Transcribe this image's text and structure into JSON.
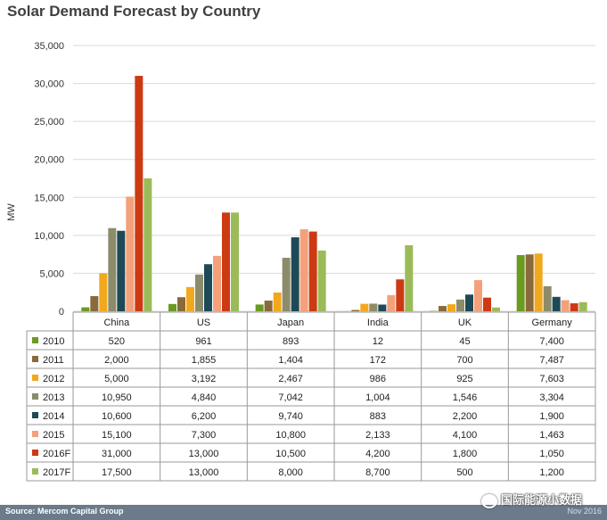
{
  "chart_data": {
    "type": "bar",
    "title": "Solar Demand Forecast by Country",
    "ylabel": "MW",
    "ylim": [
      0,
      35000
    ],
    "yticks": [
      "0",
      "5,000",
      "10,000",
      "15,000",
      "20,000",
      "25,000",
      "30,000",
      "35,000"
    ],
    "grid": true,
    "categories": [
      "China",
      "US",
      "Japan",
      "India",
      "UK",
      "Germany"
    ],
    "series": [
      {
        "name": "2010",
        "color": "#6a9a1f",
        "values": [
          520,
          961,
          893,
          12,
          45,
          7400
        ],
        "labels": [
          "520",
          "961",
          "893",
          "12",
          "45",
          "7,400"
        ]
      },
      {
        "name": "2011",
        "color": "#8a6a3a",
        "values": [
          2000,
          1855,
          1404,
          172,
          700,
          7487
        ],
        "labels": [
          "2,000",
          "1,855",
          "1,404",
          "172",
          "700",
          "7,487"
        ]
      },
      {
        "name": "2012",
        "color": "#f2a81d",
        "values": [
          5000,
          3192,
          2467,
          986,
          925,
          7603
        ],
        "labels": [
          "5,000",
          "3,192",
          "2,467",
          "986",
          "925",
          "7,603"
        ]
      },
      {
        "name": "2013",
        "color": "#8c8c6a",
        "values": [
          10950,
          4840,
          7042,
          1004,
          1546,
          3304
        ],
        "labels": [
          "10,950",
          "4,840",
          "7,042",
          "1,004",
          "1,546",
          "3,304"
        ]
      },
      {
        "name": "2014",
        "color": "#1e4a57",
        "values": [
          10600,
          6200,
          9740,
          883,
          2200,
          1900
        ],
        "labels": [
          "10,600",
          "6,200",
          "9,740",
          "883",
          "2,200",
          "1,900"
        ]
      },
      {
        "name": "2015",
        "color": "#f4a07a",
        "values": [
          15100,
          7300,
          10800,
          2133,
          4100,
          1463
        ],
        "labels": [
          "15,100",
          "7,300",
          "10,800",
          "2,133",
          "4,100",
          "1,463"
        ]
      },
      {
        "name": "2016F",
        "color": "#cc3a14",
        "values": [
          31000,
          13000,
          10500,
          4200,
          1800,
          1050
        ],
        "labels": [
          "31,000",
          "13,000",
          "10,500",
          "4,200",
          "1,800",
          "1,050"
        ]
      },
      {
        "name": "2017F",
        "color": "#9bbb59",
        "values": [
          17500,
          13000,
          8000,
          8700,
          500,
          1200
        ],
        "labels": [
          "17,500",
          "13,000",
          "8,000",
          "8,700",
          "500",
          "1,200"
        ]
      }
    ]
  },
  "footer": {
    "source": "Source: Mercom Capital Group",
    "date": "Nov 2016"
  },
  "watermark": "国际能源小数据"
}
